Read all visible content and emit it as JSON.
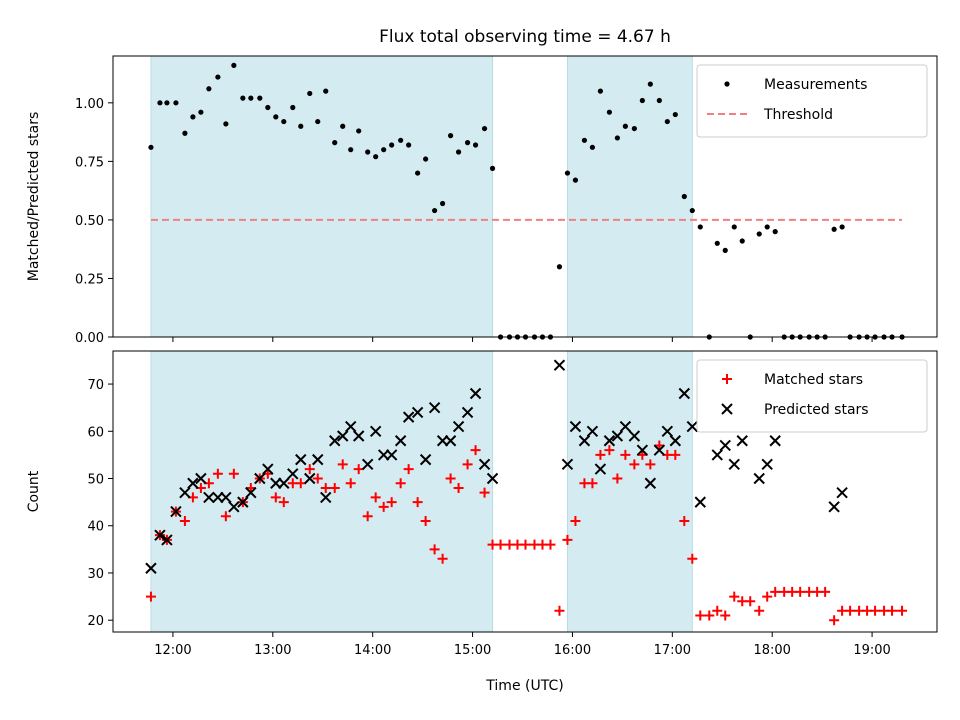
{
  "chart_data": {
    "type": "scatter",
    "title": "Flux total observing time = 4.67 h",
    "x_axis": {
      "label": "Time (UTC)",
      "range_hours": [
        11.4,
        19.65
      ],
      "ticks": [
        12,
        13,
        14,
        15,
        16,
        17,
        18,
        19
      ],
      "tick_labels": [
        "12:00",
        "13:00",
        "14:00",
        "15:00",
        "16:00",
        "17:00",
        "18:00",
        "19:00"
      ]
    },
    "observing_windows_hours": [
      [
        11.78,
        15.2
      ],
      [
        15.95,
        17.2
      ]
    ],
    "shade_color": "#d4ebf1",
    "panels": [
      {
        "ylabel": "Matched/Predicted stars",
        "ylim": [
          0,
          1.2
        ],
        "yticks": [
          0,
          0.25,
          0.5,
          0.75,
          1.0
        ],
        "ytick_labels": [
          "0.00",
          "0.25",
          "0.50",
          "0.75",
          "1.00"
        ],
        "legend_position": "top-right",
        "threshold": {
          "name": "Threshold",
          "value": 0.5,
          "x_range": [
            11.78,
            19.3
          ],
          "color": "#f08080"
        },
        "series": [
          {
            "name": "Measurements",
            "marker": "dot",
            "color": "#000000",
            "x": [
              11.78,
              11.87,
              11.94,
              12.03,
              12.12,
              12.2,
              12.28,
              12.36,
              12.45,
              12.53,
              12.61,
              12.7,
              12.78,
              12.87,
              12.95,
              13.03,
              13.11,
              13.2,
              13.28,
              13.37,
              13.45,
              13.53,
              13.62,
              13.7,
              13.78,
              13.86,
              13.95,
              14.03,
              14.11,
              14.19,
              14.28,
              14.36,
              14.45,
              14.53,
              14.62,
              14.7,
              14.78,
              14.86,
              14.95,
              15.03,
              15.12,
              15.2,
              15.28,
              15.37,
              15.45,
              15.53,
              15.62,
              15.7,
              15.78,
              15.87,
              15.95,
              16.03,
              16.12,
              16.2,
              16.28,
              16.37,
              16.45,
              16.53,
              16.62,
              16.7,
              16.78,
              16.87,
              16.95,
              17.03,
              17.12,
              17.2,
              17.28,
              17.37,
              17.45,
              17.53,
              17.62,
              17.7,
              17.78,
              17.87,
              17.95,
              18.03,
              18.12,
              18.2,
              18.28,
              18.37,
              18.45,
              18.53,
              18.62,
              18.7,
              18.78,
              18.87,
              18.95,
              19.03,
              19.12,
              19.2,
              19.3
            ],
            "y": [
              0.81,
              1.0,
              1.0,
              1.0,
              0.87,
              0.94,
              0.96,
              1.06,
              1.11,
              0.91,
              1.16,
              1.02,
              1.02,
              1.02,
              0.98,
              0.94,
              0.92,
              0.98,
              0.9,
              1.04,
              0.92,
              1.05,
              0.83,
              0.9,
              0.8,
              0.88,
              0.79,
              0.77,
              0.8,
              0.82,
              0.84,
              0.82,
              0.7,
              0.76,
              0.54,
              0.57,
              0.86,
              0.79,
              0.83,
              0.82,
              0.89,
              0.72,
              0.0,
              0.0,
              0.0,
              0.0,
              0.0,
              0.0,
              0.0,
              0.3,
              0.7,
              0.67,
              0.84,
              0.81,
              1.05,
              0.96,
              0.85,
              0.9,
              0.89,
              1.01,
              1.08,
              1.01,
              0.92,
              0.95,
              0.6,
              0.54,
              0.47,
              0.0,
              0.4,
              0.37,
              0.47,
              0.41,
              0.0,
              0.44,
              0.47,
              0.45,
              0.0,
              0.0,
              0.0,
              0.0,
              0.0,
              0.0,
              0.46,
              0.47,
              0.0,
              0.0,
              0.0,
              0.0,
              0.0,
              0.0,
              0.0
            ]
          }
        ]
      },
      {
        "ylabel": "Count",
        "ylim": [
          17.5,
          77
        ],
        "yticks": [
          20,
          30,
          40,
          50,
          60,
          70
        ],
        "ytick_labels": [
          "20",
          "30",
          "40",
          "50",
          "60",
          "70"
        ],
        "legend_position": "top-right",
        "series": [
          {
            "name": "Matched stars",
            "marker": "plus",
            "color": "#ff0000",
            "x": [
              11.78,
              11.87,
              11.94,
              12.03,
              12.12,
              12.2,
              12.28,
              12.36,
              12.45,
              12.53,
              12.61,
              12.7,
              12.78,
              12.87,
              12.95,
              13.03,
              13.11,
              13.2,
              13.28,
              13.37,
              13.45,
              13.53,
              13.62,
              13.7,
              13.78,
              13.86,
              13.95,
              14.03,
              14.11,
              14.19,
              14.28,
              14.36,
              14.45,
              14.53,
              14.62,
              14.7,
              14.78,
              14.86,
              14.95,
              15.03,
              15.12,
              15.2,
              15.28,
              15.37,
              15.45,
              15.53,
              15.62,
              15.7,
              15.78,
              15.87,
              15.95,
              16.03,
              16.12,
              16.2,
              16.28,
              16.37,
              16.45,
              16.53,
              16.62,
              16.7,
              16.78,
              16.87,
              16.95,
              17.03,
              17.12,
              17.2,
              17.28,
              17.37,
              17.45,
              17.53,
              17.62,
              17.7,
              17.78,
              17.87,
              17.95,
              18.03,
              18.12,
              18.2,
              18.28,
              18.37,
              18.45,
              18.53,
              18.62,
              18.7,
              18.78,
              18.87,
              18.95,
              19.03,
              19.12,
              19.2,
              19.3
            ],
            "y": [
              25,
              38,
              37,
              43,
              41,
              46,
              48,
              49,
              51,
              42,
              51,
              45,
              48,
              50,
              51,
              46,
              45,
              49,
              49,
              52,
              50,
              48,
              48,
              53,
              49,
              52,
              42,
              46,
              44,
              45,
              49,
              52,
              45,
              41,
              35,
              33,
              50,
              48,
              53,
              56,
              47,
              36,
              36,
              36,
              36,
              36,
              36,
              36,
              36,
              22,
              37,
              41,
              49,
              49,
              55,
              56,
              50,
              55,
              53,
              55,
              53,
              57,
              55,
              55,
              41,
              33,
              21,
              21,
              22,
              21,
              25,
              24,
              24,
              22,
              25,
              26,
              26,
              26,
              26,
              26,
              26,
              26,
              20,
              22,
              22,
              22,
              22,
              22,
              22,
              22,
              22
            ]
          },
          {
            "name": "Predicted stars",
            "marker": "x",
            "color": "#000000",
            "x": [
              11.78,
              11.87,
              11.94,
              12.03,
              12.12,
              12.2,
              12.28,
              12.36,
              12.45,
              12.53,
              12.61,
              12.7,
              12.78,
              12.87,
              12.95,
              13.03,
              13.11,
              13.2,
              13.28,
              13.37,
              13.45,
              13.53,
              13.62,
              13.7,
              13.78,
              13.86,
              13.95,
              14.03,
              14.11,
              14.19,
              14.28,
              14.36,
              14.45,
              14.53,
              14.62,
              14.7,
              14.78,
              14.86,
              14.95,
              15.03,
              15.12,
              15.2,
              15.87,
              15.95,
              16.03,
              16.12,
              16.2,
              16.28,
              16.37,
              16.45,
              16.53,
              16.62,
              16.7,
              16.78,
              16.87,
              16.95,
              17.03,
              17.12,
              17.2,
              17.28,
              17.45,
              17.53,
              17.62,
              17.7,
              17.87,
              17.95,
              18.03,
              18.62,
              18.7
            ],
            "y": [
              31,
              38,
              37,
              43,
              47,
              49,
              50,
              46,
              46,
              46,
              44,
              45,
              47,
              50,
              52,
              49,
              49,
              51,
              54,
              50,
              54,
              46,
              58,
              59,
              61,
              59,
              53,
              60,
              55,
              55,
              58,
              63,
              64,
              54,
              65,
              58,
              58,
              61,
              64,
              68,
              53,
              50,
              74,
              53,
              61,
              58,
              60,
              52,
              58,
              59,
              61,
              59,
              56,
              49,
              56,
              60,
              58,
              68,
              61,
              45,
              55,
              57,
              53,
              58,
              50,
              53,
              58,
              44,
              47
            ]
          }
        ]
      }
    ]
  }
}
